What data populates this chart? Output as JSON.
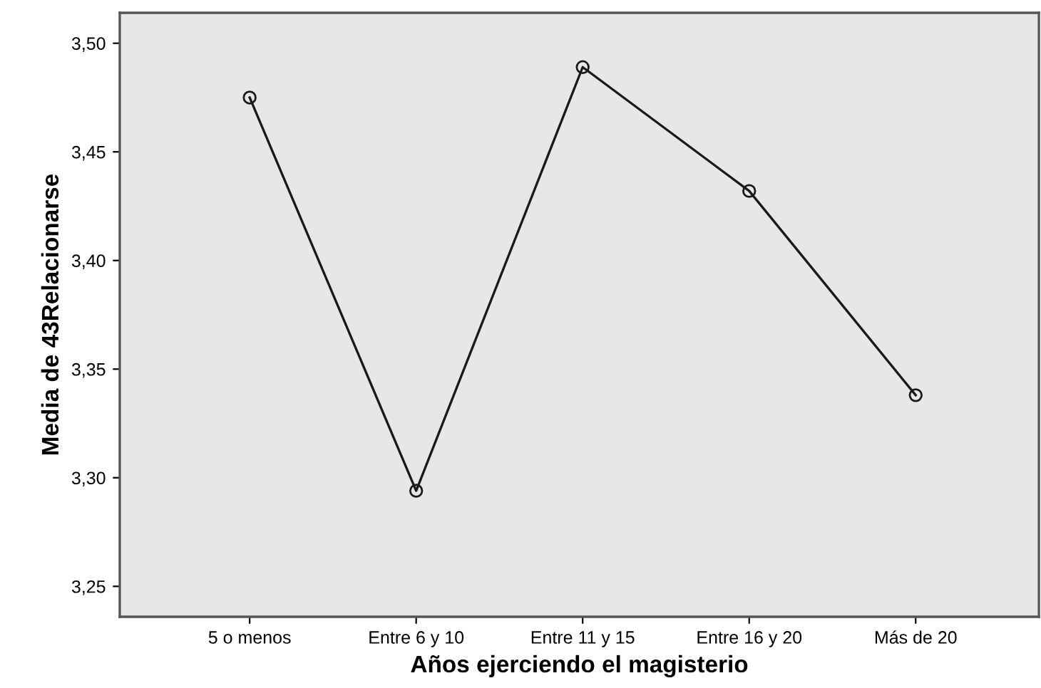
{
  "chart_data": {
    "type": "line",
    "xlabel": "Años ejerciendo el magisterio",
    "ylabel": "Media de 43Relacionarse",
    "categories": [
      "5 o menos",
      "Entre 6 y 10",
      "Entre 11 y 15",
      "Entre 16 y 20",
      "Más de 20"
    ],
    "series": [
      {
        "color": "#1a1a1a",
        "values": [
          3.475,
          3.294,
          3.489,
          3.432,
          3.338
        ]
      }
    ],
    "ylim": [
      3.236,
      3.514
    ],
    "yticks": [
      {
        "value": 3.25,
        "label": "3,25"
      },
      {
        "value": 3.3,
        "label": "3,30"
      },
      {
        "value": 3.35,
        "label": "3,35"
      },
      {
        "value": 3.4,
        "label": "3,40"
      },
      {
        "value": 3.45,
        "label": "3,45"
      },
      {
        "value": 3.5,
        "label": "3,50"
      }
    ],
    "marker": "circle",
    "line_style": "solid",
    "grid": false,
    "legend": false
  }
}
